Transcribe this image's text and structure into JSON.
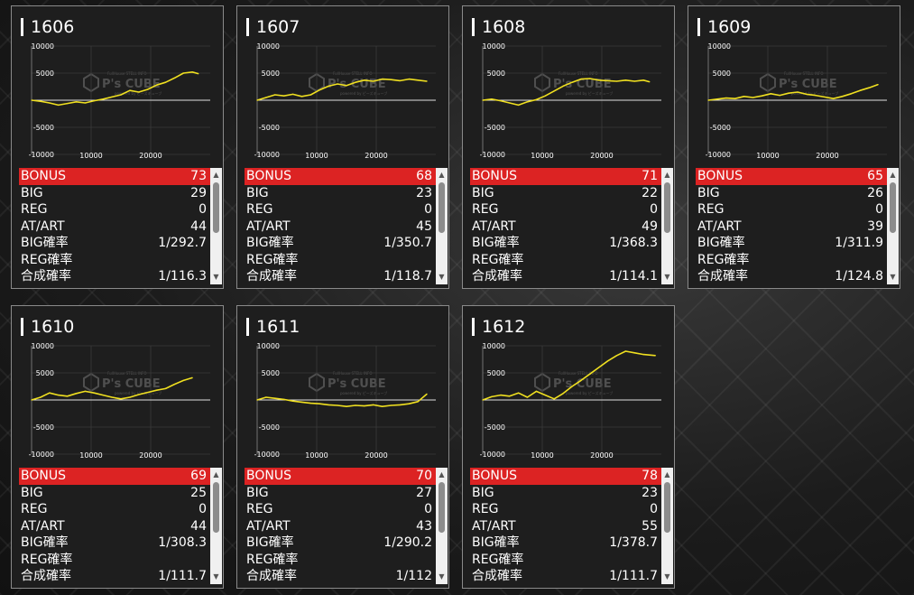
{
  "cards": [
    {
      "id": "1606",
      "bonus": "73",
      "big": "29",
      "reg": "0",
      "atart": "44",
      "big_prob": "1/292.7",
      "reg_prob": "",
      "total_prob": "1/116.3"
    },
    {
      "id": "1607",
      "bonus": "68",
      "big": "23",
      "reg": "0",
      "atart": "45",
      "big_prob": "1/350.7",
      "reg_prob": "",
      "total_prob": "1/118.7"
    },
    {
      "id": "1608",
      "bonus": "71",
      "big": "22",
      "reg": "0",
      "atart": "49",
      "big_prob": "1/368.3",
      "reg_prob": "",
      "total_prob": "1/114.1"
    },
    {
      "id": "1609",
      "bonus": "65",
      "big": "26",
      "reg": "0",
      "atart": "39",
      "big_prob": "1/311.9",
      "reg_prob": "",
      "total_prob": "1/124.8"
    },
    {
      "id": "1610",
      "bonus": "69",
      "big": "25",
      "reg": "0",
      "atart": "44",
      "big_prob": "1/308.3",
      "reg_prob": "",
      "total_prob": "1/111.7"
    },
    {
      "id": "1611",
      "bonus": "70",
      "big": "27",
      "reg": "0",
      "atart": "43",
      "big_prob": "1/290.2",
      "reg_prob": "",
      "total_prob": "1/112"
    },
    {
      "id": "1612",
      "bonus": "78",
      "big": "23",
      "reg": "0",
      "atart": "55",
      "big_prob": "1/378.7",
      "reg_prob": "",
      "total_prob": "1/111.7"
    }
  ],
  "labels": {
    "bonus": "BONUS",
    "big": "BIG",
    "reg": "REG",
    "atart": "AT/ART",
    "big_prob": "BIG確率",
    "reg_prob": "REG確率",
    "total_prob": "合成確率"
  },
  "watermark": {
    "brand": "P's CUBE",
    "small_top": "FullHouse STELL INFO",
    "small_bottom": "powered by ピーズキューブ"
  },
  "colors": {
    "line": "#f0e020",
    "highlight": "#dc2323",
    "axis": "#e0e0e0"
  },
  "chart_data": [
    {
      "type": "line",
      "title": "1606",
      "y_ticks": [
        "10000",
        "5000",
        "",
        "-5000",
        "-10000"
      ],
      "x_ticks": [
        "10000",
        "20000"
      ],
      "ylim": [
        -10000,
        10000
      ],
      "xlim": [
        0,
        30000
      ],
      "x": [
        0,
        1500,
        3000,
        4500,
        6000,
        7500,
        9000,
        10500,
        12000,
        13500,
        15000,
        16500,
        18000,
        19500,
        21000,
        22500,
        24000,
        25500,
        27000,
        28000
      ],
      "values": [
        0,
        -200,
        -500,
        -900,
        -600,
        -300,
        -500,
        -100,
        200,
        600,
        1000,
        1800,
        1500,
        2000,
        2800,
        3300,
        4100,
        5000,
        5200,
        4900
      ]
    },
    {
      "type": "line",
      "title": "1607",
      "y_ticks": [
        "10000",
        "5000",
        "",
        "-5000",
        "-10000"
      ],
      "x_ticks": [
        "10000",
        "20000"
      ],
      "ylim": [
        -10000,
        10000
      ],
      "xlim": [
        0,
        30000
      ],
      "x": [
        0,
        1500,
        3000,
        4500,
        6000,
        7500,
        9000,
        10500,
        12000,
        13500,
        15000,
        16500,
        18000,
        19500,
        21000,
        22500,
        24000,
        25500,
        27000,
        28500
      ],
      "values": [
        0,
        500,
        1000,
        800,
        1100,
        700,
        1000,
        1900,
        2600,
        3000,
        2700,
        3300,
        3700,
        3500,
        3900,
        3800,
        3600,
        3900,
        3700,
        3500
      ]
    },
    {
      "type": "line",
      "title": "1608",
      "y_ticks": [
        "10000",
        "5000",
        "",
        "-5000",
        "-10000"
      ],
      "x_ticks": [
        "10000",
        "20000"
      ],
      "ylim": [
        -10000,
        10000
      ],
      "xlim": [
        0,
        30000
      ],
      "x": [
        0,
        1500,
        3000,
        4500,
        6000,
        7500,
        9000,
        10500,
        12000,
        13500,
        15000,
        16500,
        18000,
        19500,
        21000,
        22500,
        24000,
        25500,
        27000,
        28000
      ],
      "values": [
        0,
        200,
        -100,
        -500,
        -900,
        -300,
        100,
        800,
        1700,
        2600,
        3300,
        3900,
        4000,
        3700,
        3600,
        3500,
        3700,
        3500,
        3700,
        3400
      ]
    },
    {
      "type": "line",
      "title": "1609",
      "y_ticks": [
        "10000",
        "5000",
        "",
        "-5000",
        "-10000"
      ],
      "x_ticks": [
        "10000",
        "20000"
      ],
      "ylim": [
        -10000,
        10000
      ],
      "xlim": [
        0,
        30000
      ],
      "x": [
        0,
        1500,
        3000,
        4500,
        6000,
        7500,
        9000,
        10500,
        12000,
        13500,
        15000,
        16500,
        18000,
        19500,
        21000,
        22500,
        24000,
        25500,
        27000,
        28500
      ],
      "values": [
        0,
        200,
        400,
        300,
        700,
        500,
        800,
        1200,
        900,
        1300,
        1500,
        1100,
        900,
        600,
        300,
        700,
        1200,
        1800,
        2300,
        2900
      ]
    },
    {
      "type": "line",
      "title": "1610",
      "y_ticks": [
        "10000",
        "5000",
        "",
        "-5000",
        "-10000"
      ],
      "x_ticks": [
        "10000",
        "20000"
      ],
      "ylim": [
        -10000,
        10000
      ],
      "xlim": [
        0,
        30000
      ],
      "x": [
        0,
        1500,
        3000,
        4500,
        6000,
        7500,
        9000,
        10500,
        12000,
        13500,
        15000,
        16500,
        18000,
        19500,
        21000,
        22500,
        24000,
        25500,
        27000
      ],
      "values": [
        0,
        500,
        1300,
        900,
        700,
        1200,
        1600,
        1300,
        900,
        500,
        200,
        500,
        1000,
        1400,
        1800,
        2100,
        2900,
        3600,
        4100
      ]
    },
    {
      "type": "line",
      "title": "1611",
      "y_ticks": [
        "10000",
        "5000",
        "",
        "-5000",
        "-10000"
      ],
      "x_ticks": [
        "10000",
        "20000"
      ],
      "ylim": [
        -10000,
        10000
      ],
      "xlim": [
        0,
        30000
      ],
      "x": [
        0,
        1500,
        3000,
        4500,
        6000,
        7500,
        9000,
        10500,
        12000,
        13500,
        15000,
        16500,
        18000,
        19500,
        21000,
        22500,
        24000,
        25500,
        27000,
        28500
      ],
      "values": [
        0,
        500,
        300,
        100,
        -200,
        -400,
        -600,
        -700,
        -900,
        -1000,
        -1200,
        -1000,
        -1100,
        -900,
        -1200,
        -1000,
        -900,
        -700,
        -300,
        1100
      ]
    },
    {
      "type": "line",
      "title": "1612",
      "y_ticks": [
        "10000",
        "5000",
        "",
        "-5000",
        "-10000"
      ],
      "x_ticks": [
        "10000",
        "20000"
      ],
      "ylim": [
        -10000,
        10000
      ],
      "xlim": [
        0,
        30000
      ],
      "x": [
        0,
        1500,
        3000,
        4500,
        6000,
        7500,
        9000,
        10500,
        12000,
        13500,
        15000,
        16500,
        18000,
        19500,
        21000,
        22500,
        24000,
        25500,
        27000,
        29000
      ],
      "values": [
        0,
        600,
        900,
        700,
        1300,
        500,
        1600,
        900,
        200,
        1200,
        2500,
        3600,
        4800,
        6000,
        7200,
        8200,
        9000,
        8700,
        8400,
        8200
      ]
    }
  ]
}
